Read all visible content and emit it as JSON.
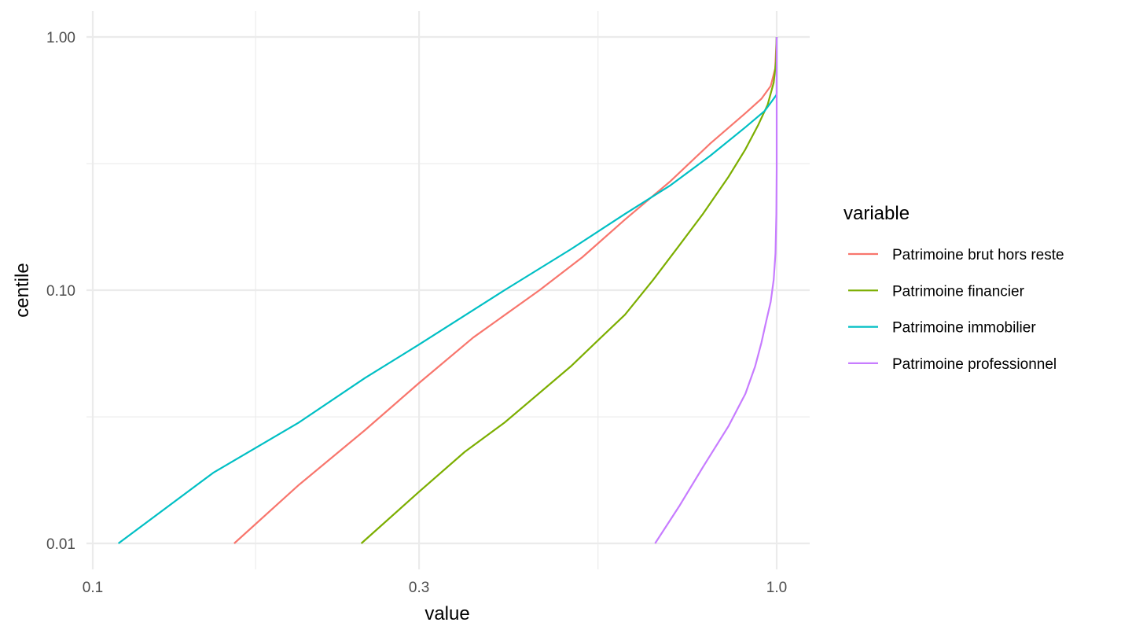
{
  "chart_data": {
    "type": "line",
    "xlabel": "value",
    "ylabel": "centile",
    "x_scale": "log10",
    "y_scale": "log10",
    "xlim": [
      0.1,
      1.0
    ],
    "ylim": [
      0.01,
      1.0
    ],
    "x_ticks": [
      {
        "value": 0.1,
        "label": "0.1"
      },
      {
        "value": 0.3,
        "label": "0.3"
      },
      {
        "value": 1.0,
        "label": "1.0"
      }
    ],
    "x_minor_ticks": [
      0.173,
      0.548
    ],
    "y_ticks": [
      {
        "value": 0.01,
        "label": "0.01"
      },
      {
        "value": 0.1,
        "label": "0.10"
      },
      {
        "value": 1.0,
        "label": "1.00"
      }
    ],
    "y_minor_ticks": [
      0.0316,
      0.316
    ],
    "grid": true,
    "legend": {
      "title": "variable",
      "position": "right"
    },
    "series": [
      {
        "name": "Patrimoine brut hors reste",
        "color": "#F8766D",
        "points": [
          [
            0.161,
            0.01
          ],
          [
            0.2,
            0.017
          ],
          [
            0.25,
            0.028
          ],
          [
            0.3,
            0.043
          ],
          [
            0.36,
            0.065
          ],
          [
            0.45,
            0.1
          ],
          [
            0.52,
            0.135
          ],
          [
            0.6,
            0.19
          ],
          [
            0.7,
            0.27
          ],
          [
            0.8,
            0.38
          ],
          [
            0.9,
            0.5
          ],
          [
            0.95,
            0.57
          ],
          [
            0.98,
            0.64
          ],
          [
            0.995,
            0.75
          ],
          [
            1.0,
            1.0
          ]
        ]
      },
      {
        "name": "Patrimoine financier",
        "color": "#7CAE00",
        "points": [
          [
            0.247,
            0.01
          ],
          [
            0.3,
            0.016
          ],
          [
            0.35,
            0.023
          ],
          [
            0.4,
            0.03
          ],
          [
            0.5,
            0.05
          ],
          [
            0.55,
            0.064
          ],
          [
            0.6,
            0.08
          ],
          [
            0.66,
            0.11
          ],
          [
            0.72,
            0.15
          ],
          [
            0.78,
            0.2
          ],
          [
            0.85,
            0.28
          ],
          [
            0.9,
            0.36
          ],
          [
            0.94,
            0.45
          ],
          [
            0.97,
            0.54
          ],
          [
            0.99,
            0.66
          ],
          [
            0.998,
            0.8
          ],
          [
            1.0,
            1.0
          ]
        ]
      },
      {
        "name": "Patrimoine immobilier",
        "color": "#00BFC4",
        "points": [
          [
            0.109,
            0.01
          ],
          [
            0.15,
            0.019
          ],
          [
            0.2,
            0.03
          ],
          [
            0.25,
            0.045
          ],
          [
            0.3,
            0.061
          ],
          [
            0.4,
            0.1
          ],
          [
            0.5,
            0.145
          ],
          [
            0.6,
            0.2
          ],
          [
            0.7,
            0.26
          ],
          [
            0.8,
            0.34
          ],
          [
            0.9,
            0.44
          ],
          [
            0.96,
            0.51
          ],
          [
            0.985,
            0.56
          ],
          [
            0.999,
            0.59
          ],
          [
            1.0,
            0.6
          ],
          [
            1.0,
            1.0
          ]
        ]
      },
      {
        "name": "Patrimoine professionnel",
        "color": "#C77CFF",
        "points": [
          [
            0.664,
            0.01
          ],
          [
            0.72,
            0.014
          ],
          [
            0.78,
            0.02
          ],
          [
            0.85,
            0.029
          ],
          [
            0.9,
            0.039
          ],
          [
            0.93,
            0.05
          ],
          [
            0.95,
            0.062
          ],
          [
            0.965,
            0.075
          ],
          [
            0.98,
            0.09
          ],
          [
            0.99,
            0.11
          ],
          [
            0.996,
            0.14
          ],
          [
            0.999,
            0.2
          ],
          [
            1.0,
            0.3
          ],
          [
            1.0,
            0.5
          ],
          [
            1.0,
            1.0
          ]
        ]
      }
    ]
  }
}
